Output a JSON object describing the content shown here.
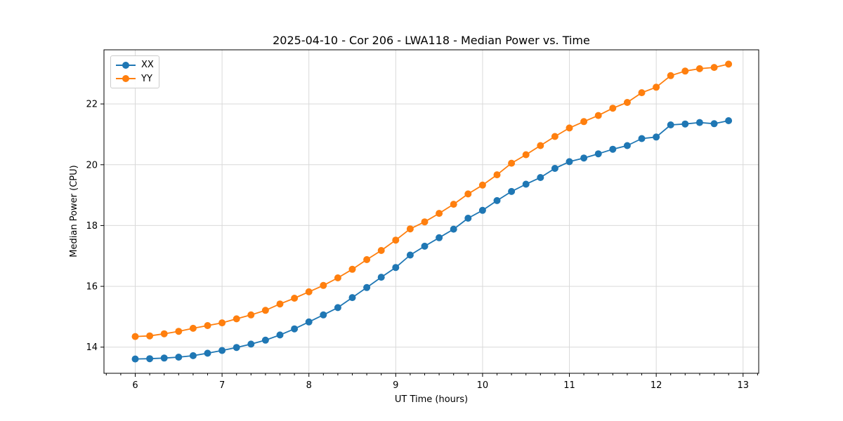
{
  "chart_data": {
    "type": "line",
    "title": "2025-04-10 - Cor 206 - LWA118 - Median Power vs. Time",
    "xlabel": "UT Time (hours)",
    "ylabel": "Median Power (CPU)",
    "xlim": [
      5.64,
      13.18
    ],
    "ylim": [
      13.14,
      23.78
    ],
    "x_ticks": [
      6,
      7,
      8,
      9,
      10,
      11,
      12,
      13
    ],
    "y_ticks": [
      14,
      16,
      18,
      20,
      22
    ],
    "x_minor_tick_step": 0.166667,
    "grid": true,
    "legend_position": "upper-left",
    "x": [
      6.0,
      6.1667,
      6.3333,
      6.5,
      6.6667,
      6.8333,
      7.0,
      7.1667,
      7.3333,
      7.5,
      7.6667,
      7.8333,
      8.0,
      8.1667,
      8.3333,
      8.5,
      8.6667,
      8.8333,
      9.0,
      9.1667,
      9.3333,
      9.5,
      9.6667,
      9.8333,
      10.0,
      10.1667,
      10.3333,
      10.5,
      10.6667,
      10.8333,
      11.0,
      11.1667,
      11.3333,
      11.5,
      11.6667,
      11.8333,
      12.0,
      12.1667,
      12.3333,
      12.5,
      12.6667,
      12.8333
    ],
    "series": [
      {
        "name": "XX",
        "color": "#1f77b4",
        "marker": "circle",
        "values": [
          13.61,
          13.62,
          13.64,
          13.67,
          13.72,
          13.8,
          13.89,
          13.99,
          14.1,
          14.23,
          14.4,
          14.6,
          14.83,
          15.06,
          15.3,
          15.63,
          15.96,
          16.3,
          16.62,
          17.03,
          17.32,
          17.6,
          17.88,
          18.24,
          18.5,
          18.82,
          19.12,
          19.36,
          19.58,
          19.88,
          20.1,
          20.22,
          20.36,
          20.51,
          20.63,
          20.86,
          20.91,
          21.31,
          21.34,
          21.39,
          21.35,
          21.45
        ]
      },
      {
        "name": "YY",
        "color": "#ff7f0e",
        "marker": "circle",
        "values": [
          14.35,
          14.37,
          14.44,
          14.52,
          14.62,
          14.71,
          14.8,
          14.93,
          15.06,
          15.21,
          15.42,
          15.61,
          15.82,
          16.03,
          16.28,
          16.56,
          16.88,
          17.18,
          17.52,
          17.89,
          18.12,
          18.4,
          18.7,
          19.04,
          19.33,
          19.67,
          20.05,
          20.33,
          20.63,
          20.93,
          21.21,
          21.42,
          21.62,
          21.86,
          22.05,
          22.37,
          22.55,
          22.93,
          23.08,
          23.16,
          23.2,
          23.31
        ]
      }
    ]
  },
  "style": {
    "background": "#ffffff",
    "grid_color": "#d9d9d9",
    "spine_color": "#000000",
    "tick_color": "#000000",
    "text_color": "#000000",
    "legend_border_color": "#cccccc"
  }
}
